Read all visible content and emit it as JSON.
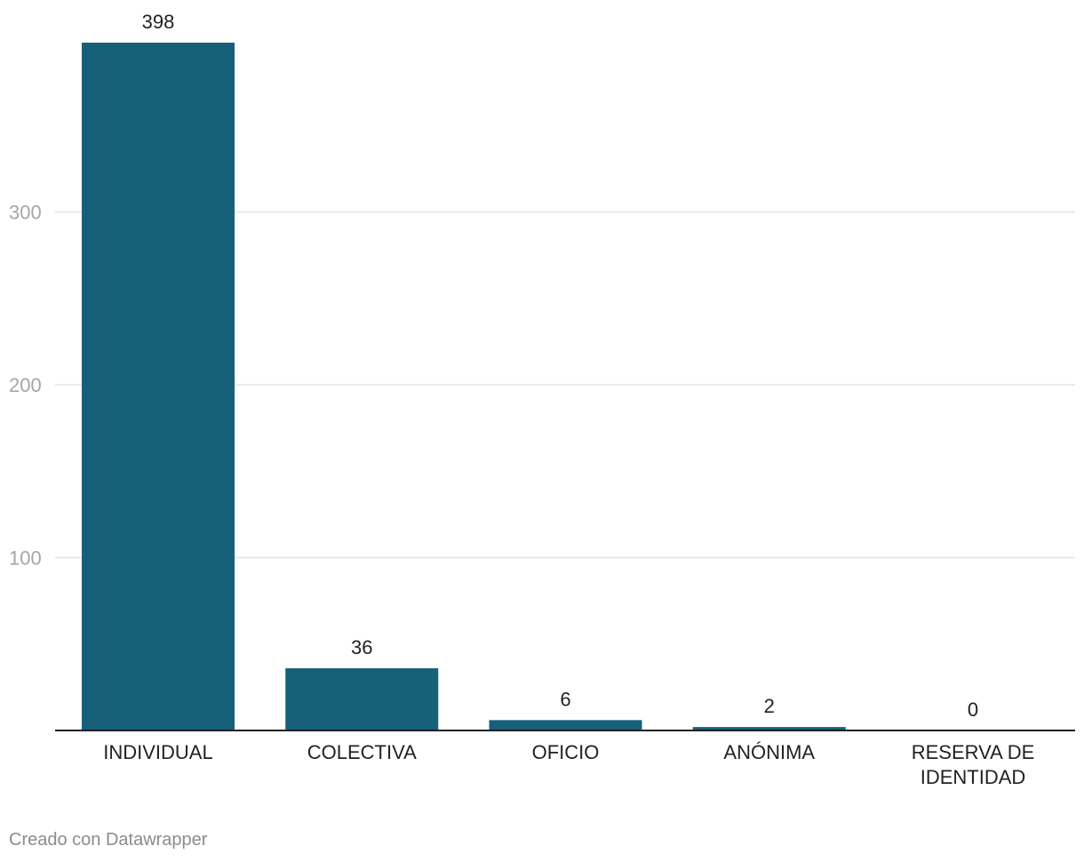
{
  "chart_data": {
    "type": "bar",
    "categories": [
      "INDIVIDUAL",
      "COLECTIVA",
      "OFICIO",
      "ANÓNIMA",
      "RESERVA DE IDENTIDAD"
    ],
    "category_lines": [
      [
        "INDIVIDUAL"
      ],
      [
        "COLECTIVA"
      ],
      [
        "OFICIO"
      ],
      [
        "ANÓNIMA"
      ],
      [
        "RESERVA DE",
        "IDENTIDAD"
      ]
    ],
    "values": [
      398,
      36,
      6,
      2,
      0
    ],
    "value_labels": [
      "398",
      "36",
      "6",
      "2",
      "0"
    ],
    "yticks": [
      100,
      200,
      300
    ],
    "ytick_labels": [
      "100",
      "200",
      "300"
    ],
    "ylim": [
      0,
      398
    ],
    "grid": true,
    "legend": "none",
    "bar_color": "#17607a",
    "grid_color": "#e3e3e3",
    "axis_color": "#222222"
  },
  "footer": {
    "credit": "Creado con Datawrapper"
  }
}
